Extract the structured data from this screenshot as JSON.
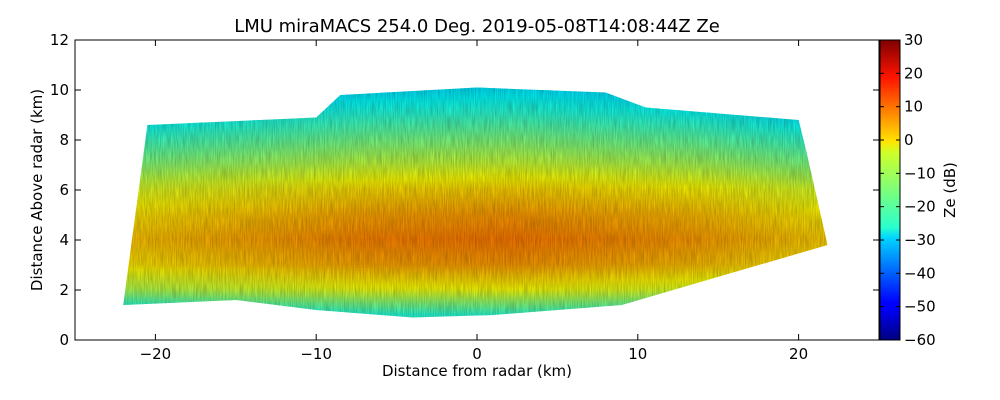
{
  "chart_data": {
    "type": "heatmap",
    "title": "LMU miraMACS 254.0 Deg. 2019-05-08T14:08:44Z  Ze",
    "xlabel": "Distance from radar (km)",
    "ylabel": "Distance Above radar  (km)",
    "xlim": [
      -25,
      25
    ],
    "ylim": [
      0,
      12
    ],
    "xticks": [
      -20,
      -10,
      0,
      10,
      20
    ],
    "xtick_labels": [
      "−20",
      "−10",
      "0",
      "10",
      "20"
    ],
    "yticks": [
      0,
      2,
      4,
      6,
      8,
      10,
      12
    ],
    "ytick_labels": [
      "0",
      "2",
      "4",
      "6",
      "8",
      "10",
      "12"
    ],
    "colorbar": {
      "label": "Ze (dB)",
      "range": [
        -60,
        30
      ],
      "ticks": [
        30,
        20,
        10,
        0,
        -10,
        -20,
        -30,
        -40,
        -50,
        -60
      ],
      "tick_labels": [
        "30",
        "20",
        "10",
        "0",
        "−10",
        "−20",
        "−30",
        "−40",
        "−50",
        "−60"
      ],
      "colormap": "jet"
    },
    "echo_region": {
      "outline_x_km": [
        -22,
        -20.5,
        -10,
        -8.5,
        0,
        8,
        10.5,
        20,
        20.5,
        21.8,
        9,
        1,
        -4,
        -10,
        -15,
        -22
      ],
      "outline_y_km": [
        1.4,
        8.6,
        8.9,
        9.8,
        10.1,
        9.9,
        9.3,
        8.8,
        7.5,
        3.8,
        1.4,
        1.0,
        0.9,
        1.2,
        1.6,
        1.4
      ],
      "height_km": [
        1,
        2,
        3,
        4,
        5,
        6,
        7,
        8,
        9,
        10
      ],
      "center_profile_ze_db": [
        -22,
        -4,
        5,
        8,
        5,
        0,
        -8,
        -15,
        -22,
        -28
      ]
    }
  }
}
